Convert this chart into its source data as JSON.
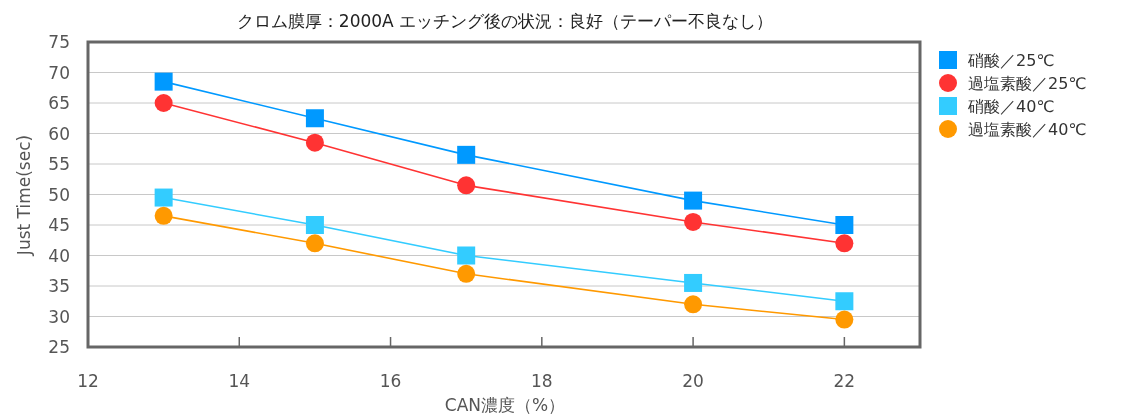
{
  "chart_data": {
    "type": "line",
    "title": "クロム膜厚：2000A  エッチング後の状況：良好（テーパー不良なし）",
    "xlabel": "CAN濃度（%）",
    "ylabel": "Just Time(sec)",
    "x": [
      13,
      15,
      17,
      20,
      22
    ],
    "series": [
      {
        "name": "硝酸／25℃",
        "color": "#0099ff",
        "marker": "square",
        "values": [
          68.5,
          62.5,
          56.5,
          49,
          45
        ]
      },
      {
        "name": "過塩素酸／25℃",
        "color": "#ff3333",
        "marker": "circle",
        "values": [
          65,
          58.5,
          51.5,
          45.5,
          42
        ]
      },
      {
        "name": "硝酸／40℃",
        "color": "#33ccff",
        "marker": "square",
        "values": [
          49.5,
          45,
          40,
          35.5,
          32.5
        ]
      },
      {
        "name": "過塩素酸／40℃",
        "color": "#ff9900",
        "marker": "circle",
        "values": [
          46.5,
          42,
          37,
          32,
          29.5
        ]
      }
    ],
    "xlim": [
      12,
      23
    ],
    "ylim": [
      25,
      75
    ],
    "xticks": [
      12,
      14,
      16,
      18,
      20,
      22
    ],
    "yticks": [
      25,
      30,
      35,
      40,
      45,
      50,
      55,
      60,
      65,
      70,
      75
    ],
    "grid": "y",
    "legend": "right"
  }
}
